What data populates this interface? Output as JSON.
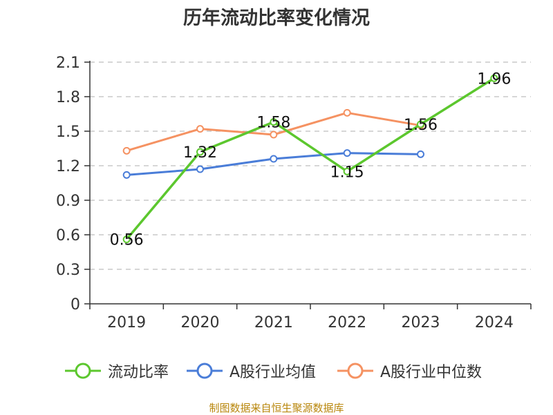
{
  "chart_data": {
    "type": "line",
    "title": "历年流动比率变化情况",
    "categories": [
      "2019",
      "2020",
      "2021",
      "2022",
      "2023",
      "2024"
    ],
    "ylim": [
      0,
      2.1
    ],
    "yticks": [
      "0",
      "0.3",
      "0.6",
      "0.9",
      "1.2",
      "1.5",
      "1.8",
      "2.1"
    ],
    "grid": true,
    "legend_position": "bottom",
    "series": [
      {
        "name": "流动比率",
        "color": "#5cc72e",
        "values": [
          0.56,
          1.32,
          1.58,
          1.15,
          1.56,
          1.96
        ],
        "labels": [
          "0.56",
          "1.32",
          "1.58",
          "1.15",
          "1.56",
          "1.96"
        ]
      },
      {
        "name": "A股行业均值",
        "color": "#4a7dd8",
        "values": [
          1.12,
          1.17,
          1.26,
          1.31,
          1.3,
          null
        ]
      },
      {
        "name": "A股行业中位数",
        "color": "#f59262",
        "values": [
          1.33,
          1.52,
          1.47,
          1.66,
          1.55,
          null
        ]
      }
    ]
  },
  "footer": "制图数据来自恒生聚源数据库"
}
